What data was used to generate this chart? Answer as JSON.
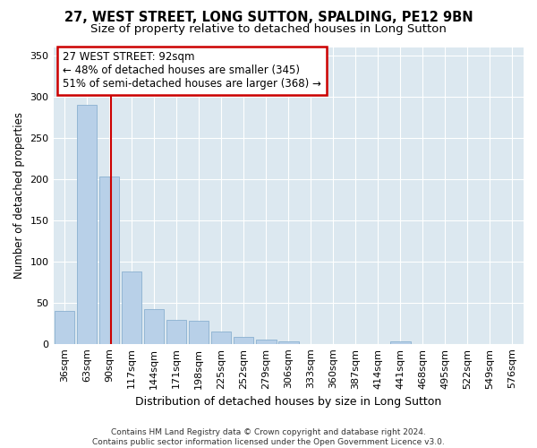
{
  "title": "27, WEST STREET, LONG SUTTON, SPALDING, PE12 9BN",
  "subtitle": "Size of property relative to detached houses in Long Sutton",
  "xlabel": "Distribution of detached houses by size in Long Sutton",
  "ylabel": "Number of detached properties",
  "categories": [
    "36sqm",
    "63sqm",
    "90sqm",
    "117sqm",
    "144sqm",
    "171sqm",
    "198sqm",
    "225sqm",
    "252sqm",
    "279sqm",
    "306sqm",
    "333sqm",
    "360sqm",
    "387sqm",
    "414sqm",
    "441sqm",
    "468sqm",
    "495sqm",
    "522sqm",
    "549sqm",
    "576sqm"
  ],
  "values": [
    40,
    290,
    203,
    88,
    42,
    29,
    28,
    15,
    8,
    5,
    3,
    0,
    0,
    0,
    0,
    3,
    0,
    0,
    0,
    0,
    0
  ],
  "bar_color": "#b8d0e8",
  "bar_edge_color": "#8ab0d0",
  "property_line_label": "27 WEST STREET: 92sqm",
  "annotation_line1": "← 48% of detached houses are smaller (345)",
  "annotation_line2": "51% of semi-detached houses are larger (368) →",
  "annotation_box_facecolor": "#ffffff",
  "annotation_box_edgecolor": "#cc0000",
  "vline_color": "#cc0000",
  "ylim": [
    0,
    360
  ],
  "yticks": [
    0,
    50,
    100,
    150,
    200,
    250,
    300,
    350
  ],
  "plot_bg_color": "#dce8f0",
  "footer_line1": "Contains HM Land Registry data © Crown copyright and database right 2024.",
  "footer_line2": "Contains public sector information licensed under the Open Government Licence v3.0.",
  "title_fontsize": 10.5,
  "subtitle_fontsize": 9.5,
  "xlabel_fontsize": 9,
  "ylabel_fontsize": 8.5,
  "tick_fontsize": 8,
  "footer_fontsize": 6.5,
  "annot_fontsize": 8.5
}
